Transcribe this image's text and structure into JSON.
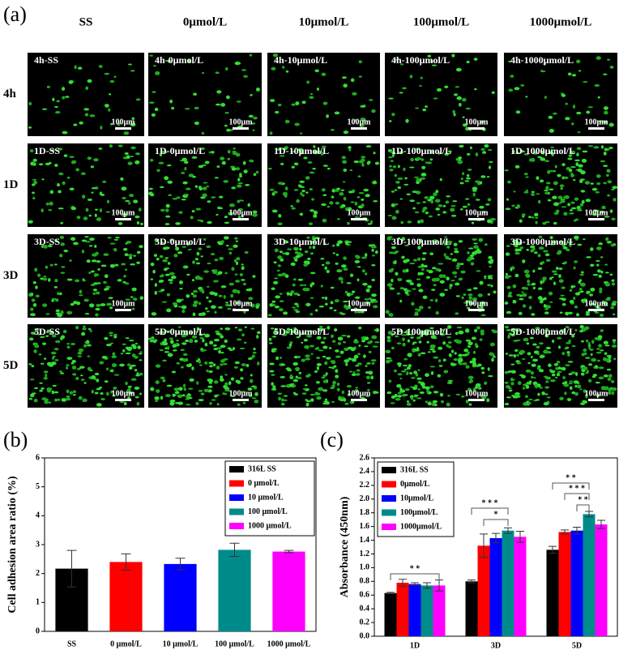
{
  "panel_a": {
    "label": "(a)",
    "columns": [
      "SS",
      "0μmol/L",
      "10μmol/L",
      "100μmol/L",
      "1000μmol/L"
    ],
    "rows": [
      "4h",
      "1D",
      "3D",
      "5D"
    ],
    "images": [
      [
        "4h-SS",
        "4h-0μmol/L",
        "4h-10μmol/L",
        "4h-100μmol/L",
        "4h-1000μmol/L"
      ],
      [
        "1D-SS",
        "1D-0μmol/L",
        "1D-10μmol/L",
        "1D-100μmol/L",
        "1D-1000μmol/L"
      ],
      [
        "3D-SS",
        "3D-0μmol/L",
        "3D-10μmol/L",
        "3D-100μmol/L",
        "3D-1000μmol/L"
      ],
      [
        "5D-SS",
        "5D-0μmol/L",
        "5D-10μmol/L",
        "5D-100μmol/L",
        "5D-1000μmol/L"
      ]
    ],
    "scale_bar": "100μm"
  },
  "chart_data": [
    {
      "panel": "(b)",
      "type": "bar",
      "ylabel": "Cell adhesion area ratio (%)",
      "categories": [
        "SS",
        "0 μmol/L",
        "10 μmol/L",
        "100 μmol/L",
        "1000 μmol/L"
      ],
      "values": [
        2.17,
        2.4,
        2.33,
        2.82,
        2.76
      ],
      "errors": [
        0.63,
        0.28,
        0.2,
        0.23,
        0.04
      ],
      "colors": [
        "#000000",
        "#ff0000",
        "#0000ff",
        "#008b8b",
        "#ff00ff"
      ],
      "legend": [
        "316L SS",
        "0  μmol/L",
        "10  μmol/L",
        "100  μmol/L",
        "1000 μmol/L"
      ],
      "ylim": [
        0,
        6
      ],
      "yticks": [
        0,
        1,
        2,
        3,
        4,
        5,
        6
      ]
    },
    {
      "panel": "(c)",
      "type": "grouped_bar",
      "ylabel": "Absorbance (450nm)",
      "categories": [
        "1D",
        "3D",
        "5D"
      ],
      "series": [
        {
          "name": "316L SS",
          "color": "#000000",
          "values": [
            0.63,
            0.8,
            1.26
          ],
          "errors": [
            0.01,
            0.02,
            0.05
          ]
        },
        {
          "name": "0μmol/L",
          "color": "#ff0000",
          "values": [
            0.78,
            1.32,
            1.52
          ],
          "errors": [
            0.05,
            0.17,
            0.03
          ]
        },
        {
          "name": "10μmol/L",
          "color": "#0000ff",
          "values": [
            0.76,
            1.43,
            1.54
          ],
          "errors": [
            0.02,
            0.07,
            0.05
          ]
        },
        {
          "name": "100μmol/L",
          "color": "#008b8b",
          "values": [
            0.74,
            1.54,
            1.78
          ],
          "errors": [
            0.04,
            0.04,
            0.04
          ]
        },
        {
          "name": "1000μmol/L",
          "color": "#ff00ff",
          "values": [
            0.74,
            1.45,
            1.63
          ],
          "errors": [
            0.08,
            0.08,
            0.06
          ]
        }
      ],
      "ylim": [
        0,
        2.6
      ],
      "yticks": [
        {
          "value": 0,
          "label": "0.0"
        },
        0.2,
        0.4,
        0.6,
        0.8,
        {
          "value": 1,
          "label": "1.0"
        },
        1.2,
        1.4,
        1.6,
        1.8,
        {
          "value": 2,
          "label": "2.0"
        },
        2.2,
        2.4,
        2.6
      ],
      "annotations": [
        "* *",
        "* * *",
        "*",
        "* *",
        "* * *",
        "* *"
      ]
    }
  ]
}
